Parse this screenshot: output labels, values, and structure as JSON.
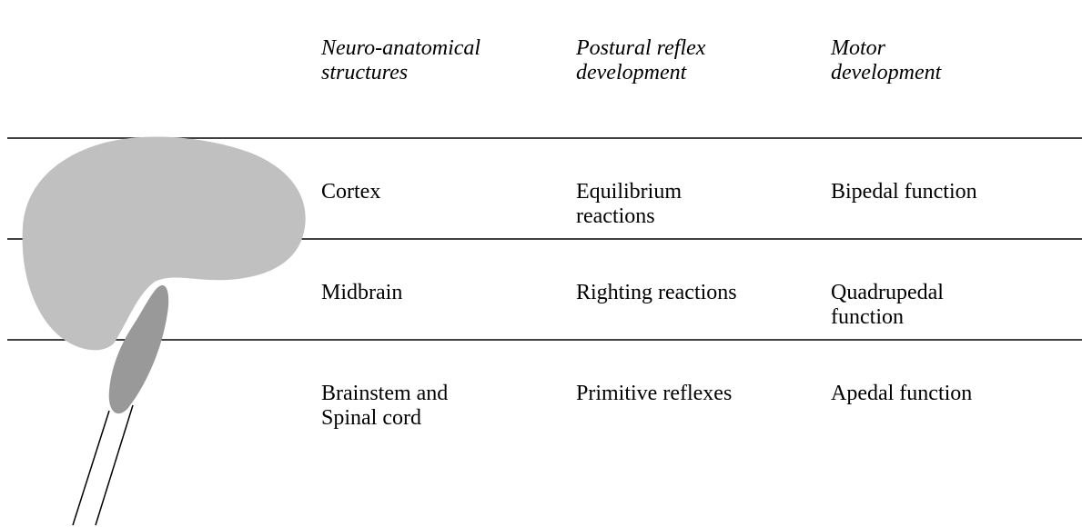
{
  "header": {
    "columns": [
      [
        "Neuro-anatomical",
        "structures"
      ],
      [
        "Postural reflex",
        "development"
      ],
      [
        "Motor",
        "development"
      ]
    ]
  },
  "rows": [
    [
      [
        "Cortex"
      ],
      [
        "Equilibrium",
        "reactions"
      ],
      [
        "Bipedal function"
      ]
    ],
    [
      [
        "Midbrain"
      ],
      [
        "Righting reactions"
      ],
      [
        "Quadrupedal",
        "function"
      ]
    ],
    [
      [
        "Brainstem and",
        "Spinal cord"
      ],
      [
        "Primitive reflexes"
      ],
      [
        "Apedal function"
      ]
    ]
  ]
}
